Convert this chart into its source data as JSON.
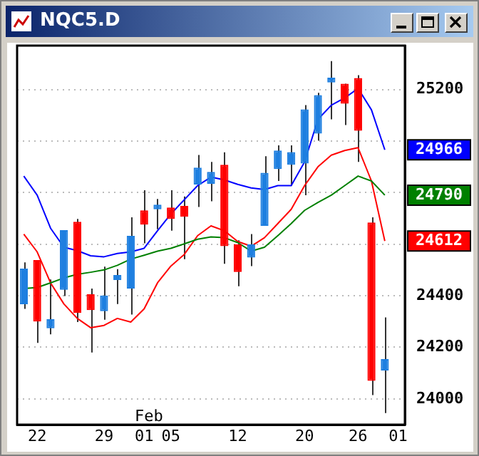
{
  "chart_data": {
    "type": "candlestick",
    "title": "NQC5.D",
    "categories": [
      null,
      "22",
      null,
      null,
      null,
      null,
      "29",
      null,
      null,
      "01",
      null,
      "05",
      null,
      null,
      null,
      null,
      "12",
      null,
      null,
      null,
      null,
      "20",
      null,
      null,
      null,
      "26",
      null,
      null,
      "01"
    ],
    "ohlc": [
      [
        24367,
        24529,
        24349,
        24505
      ],
      [
        24538,
        24538,
        24217,
        24300
      ],
      [
        24274,
        24463,
        24250,
        24309
      ],
      [
        24423,
        24654,
        24399,
        24654
      ],
      [
        24687,
        24698,
        24298,
        24334
      ],
      [
        24406,
        24428,
        24180,
        24344
      ],
      [
        24340,
        24513,
        24307,
        24401
      ],
      [
        24461,
        24503,
        24368,
        24480
      ],
      [
        24428,
        24704,
        24327,
        24632
      ],
      [
        24731,
        24809,
        24603,
        24676
      ],
      [
        24735,
        24775,
        24658,
        24753
      ],
      [
        24742,
        24809,
        24652,
        24698
      ],
      [
        24748,
        24785,
        24542,
        24707
      ],
      [
        24831,
        24946,
        24744,
        24897
      ],
      [
        24834,
        24919,
        24766,
        24880
      ],
      [
        24908,
        24956,
        24524,
        24592
      ],
      [
        24599,
        24615,
        24437,
        24492
      ],
      [
        24548,
        24639,
        24515,
        24599
      ],
      [
        24671,
        24941,
        24671,
        24877
      ],
      [
        24891,
        24983,
        24845,
        24963
      ],
      [
        24908,
        24983,
        24827,
        24957
      ],
      [
        24913,
        25139,
        24790,
        25123
      ],
      [
        25029,
        25187,
        25001,
        25178
      ],
      [
        25227,
        25310,
        25084,
        25246
      ],
      [
        25222,
        25222,
        25062,
        25145
      ],
      [
        25244,
        25255,
        24919,
        25040
      ],
      [
        24684,
        24704,
        24015,
        24070
      ],
      [
        24110,
        24316,
        23945,
        24154
      ],
      null
    ],
    "colors": [
      "#1e7fe0",
      "#ff0000",
      "#1e7fe0",
      "#1e7fe0",
      "#ff0000",
      "#ff0000",
      "#1e7fe0",
      "#1e7fe0",
      "#1e7fe0",
      "#ff0000",
      "#1e7fe0",
      "#ff0000",
      "#ff0000",
      "#1e7fe0",
      "#1e7fe0",
      "#ff0000",
      "#ff0000",
      "#1e7fe0",
      "#1e7fe0",
      "#1e7fe0",
      "#1e7fe0",
      "#1e7fe0",
      "#1e7fe0",
      "#1e7fe0",
      "#ff0000",
      "#ff0000",
      "#ff0000",
      "#1e7fe0",
      null
    ],
    "series": [
      {
        "type": "line",
        "color": "#0000ff",
        "values": [
          24864,
          24790,
          24662,
          24588,
          24575,
          24555,
          24551,
          24564,
          24570,
          24584,
          24652,
          24717,
          24772,
          24827,
          24860,
          24849,
          24832,
          24818,
          24812,
          24827,
          24827,
          24919,
          25084,
          25139,
          25167,
          25204,
          25121,
          24966,
          null
        ]
      },
      {
        "type": "line",
        "color": "#008000",
        "values": [
          24428,
          24432,
          24450,
          24469,
          24483,
          24491,
          24500,
          24518,
          24542,
          24557,
          24573,
          24584,
          24601,
          24619,
          24628,
          24625,
          24606,
          24573,
          24588,
          24633,
          24680,
          24731,
          24762,
          24790,
          24827,
          24864,
          24845,
          24790,
          null
        ]
      },
      {
        "type": "line",
        "color": "#ff0000",
        "values": [
          24639,
          24570,
          24450,
          24368,
          24312,
          24276,
          24285,
          24312,
          24298,
          24349,
          24450,
          24515,
          24560,
          24633,
          24671,
          24652,
          24610,
          24592,
          24625,
          24680,
          24735,
          24827,
          24900,
          24945,
          24963,
          24974,
          24845,
          24612,
          null
        ]
      }
    ],
    "ylim": [
      23900,
      25370
    ],
    "yticks": [
      24000,
      24200,
      24400,
      {
        "value": 24600,
        "label": null
      },
      {
        "value": 24800,
        "label": null
      },
      {
        "value": 25000,
        "label": null
      },
      25200
    ],
    "grid": "y",
    "marker": "none",
    "annotations": [
      "Feb",
      {
        "text": "24966",
        "y": 24966
      },
      {
        "text": "24790",
        "y": 24790
      },
      {
        "text": "24612",
        "y": 24612
      }
    ]
  }
}
